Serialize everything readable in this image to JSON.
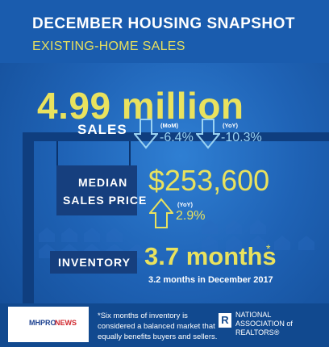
{
  "header": {
    "title": "DECEMBER HOUSING SNAPSHOT",
    "subtitle": "EXISTING-HOME SALES"
  },
  "sales": {
    "value": "4.99 million",
    "label": "SALES",
    "mom_tag": "(MoM)",
    "mom_value": "-6.4%",
    "yoy_tag": "(YoY)",
    "yoy_value": "-10.3%"
  },
  "median": {
    "label_line1": "MEDIAN",
    "label_line2": "SALES PRICE",
    "value": "$253,600",
    "yoy_tag": "(YoY)",
    "yoy_value": "2.9%"
  },
  "inventory": {
    "label": "INVENTORY",
    "value": "3.7 months",
    "asterisk": "*",
    "note": "3.2 months in December 2017"
  },
  "footer": {
    "note": "*Six months of inventory is considered a balanced market that equally benefits buyers and sellers.",
    "nar_line1": "NATIONAL",
    "nar_line2": "ASSOCIATION of",
    "nar_line3": "REALTORS",
    "nar_mark": "R",
    "reg_mark": "®"
  },
  "logo": {
    "top": "MHPRO",
    "bottom": "NEWS"
  },
  "colors": {
    "yellow": "#e9e25e",
    "light_blue": "#9bd3f2",
    "dark_panel": "#163f7e"
  }
}
